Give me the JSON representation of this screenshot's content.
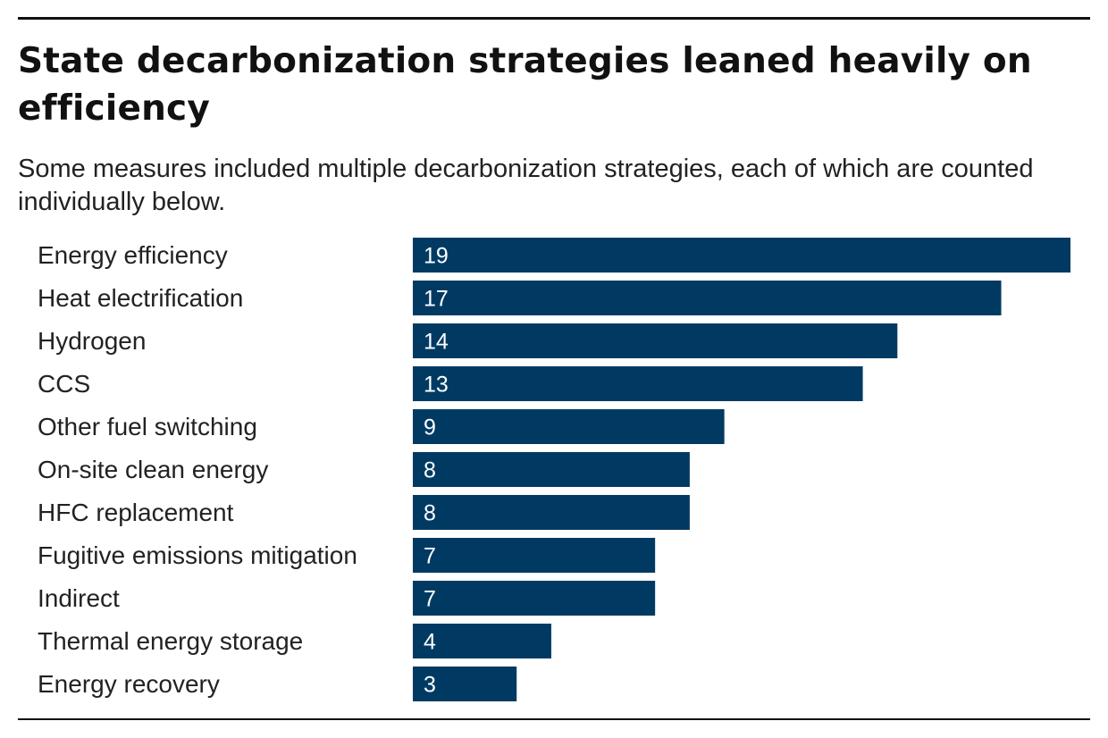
{
  "title": "State decarbonization strategies leaned heavily on efficiency",
  "subtitle": "Some measures included multiple decarbonization strategies, each of which are counted individually below.",
  "colors": {
    "bar": "#003a63",
    "rule": "#111111",
    "background": "#ffffff"
  },
  "chart_data": {
    "type": "bar",
    "orientation": "horizontal",
    "title": "State decarbonization strategies leaned heavily on efficiency",
    "subtitle": "Some measures included multiple decarbonization strategies, each of which are counted individually below.",
    "categories": [
      "Energy efficiency",
      "Heat electrification",
      "Hydrogen",
      "CCS",
      "Other fuel switching",
      "On-site clean energy",
      "HFC replacement",
      "Fugitive emissions mitigation",
      "Indirect",
      "Thermal energy storage",
      "Energy recovery"
    ],
    "values": [
      19,
      17,
      14,
      13,
      9,
      8,
      8,
      7,
      7,
      4,
      3
    ],
    "xlim": [
      0,
      19
    ],
    "xlabel": "",
    "ylabel": "",
    "grid": false,
    "legend": "none",
    "data_labels": "inside-bar-start"
  }
}
